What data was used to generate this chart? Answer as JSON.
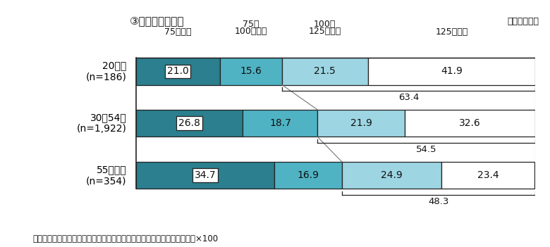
{
  "title_display": "③予想月商達成率",
  "unit_label": "（単位：％）",
  "note": "（注）予想月商達成率＝（調査時点の月商／開業前に予想していた月商）×100",
  "categories": [
    "20歳代\n(n=186)",
    "30～54歳\n(n=1,922)",
    "55歳以上\n(n=354)"
  ],
  "col_label1_top": "75～",
  "col_label1_bot": "100％未満",
  "col_label2_top": "100～",
  "col_label2_bot": "125％未満",
  "col_label0": "75％未満",
  "col_label3": "125％以上",
  "values": [
    [
      21.0,
      15.6,
      21.5,
      41.9
    ],
    [
      26.8,
      18.7,
      21.9,
      32.6
    ],
    [
      34.7,
      16.9,
      24.9,
      23.4
    ]
  ],
  "annot_values": [
    63.4,
    54.5,
    48.3
  ],
  "bar_colors": [
    "#2b7f8e",
    "#4fb3c4",
    "#9dd5e3",
    "#ffffff"
  ],
  "bar_edgecolor": "#222222",
  "connector_color": "#777777",
  "bar_height": 0.52,
  "figsize": [
    7.8,
    3.51
  ],
  "dpi": 100
}
